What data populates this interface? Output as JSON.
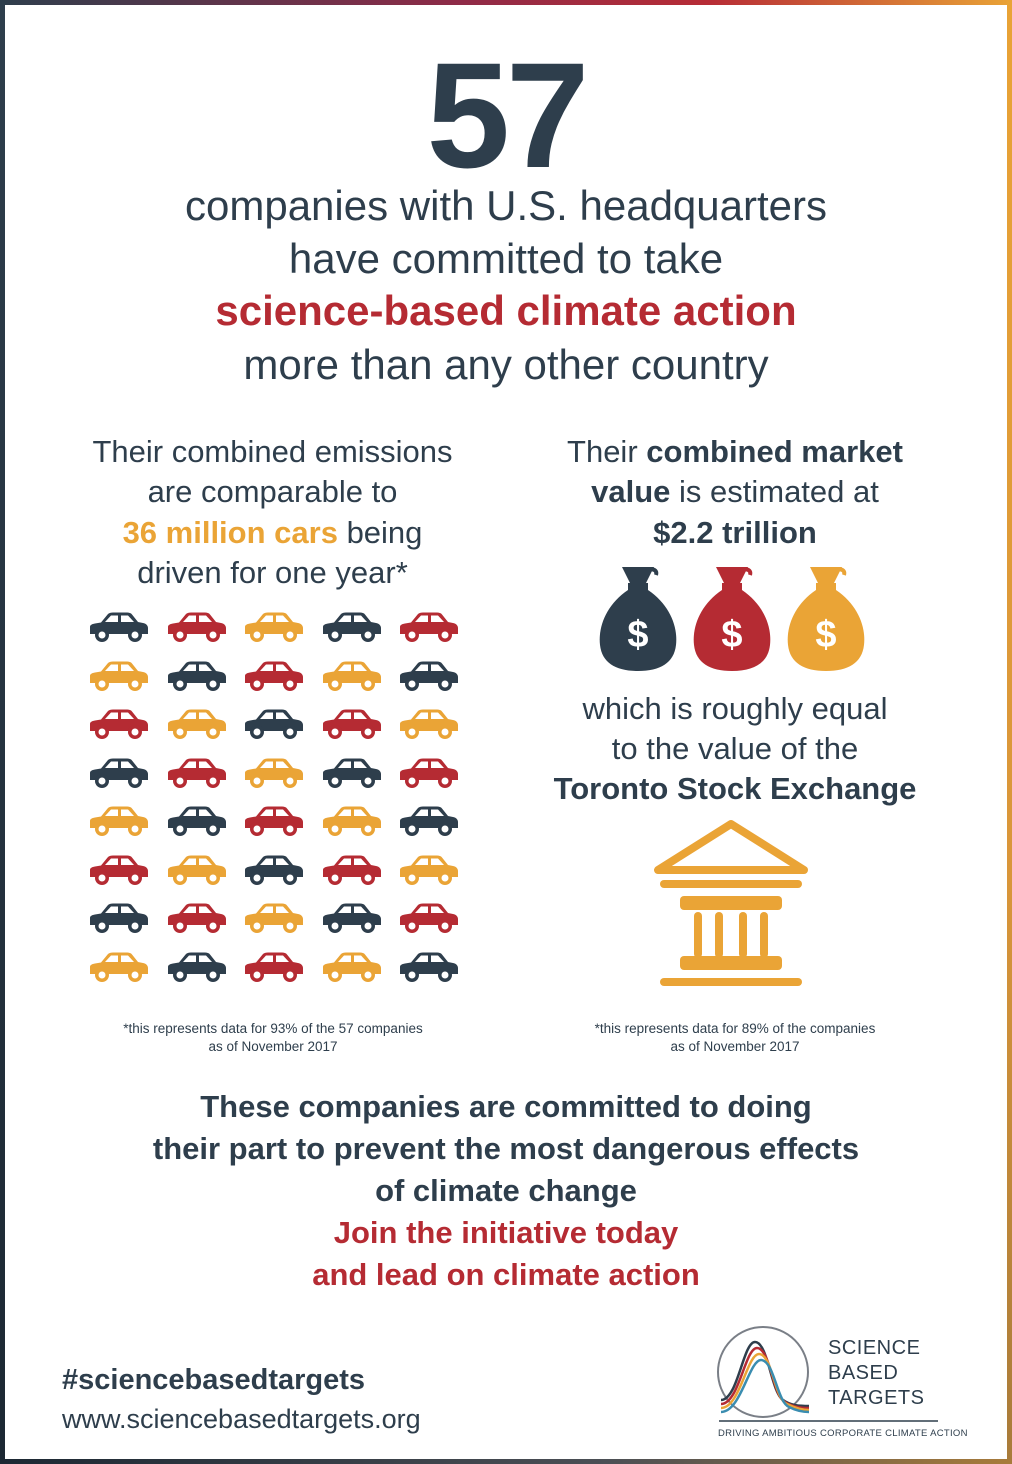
{
  "headline": {
    "number": "57",
    "line1": "companies with U.S. headquarters",
    "line2": "have committed to take",
    "line3": "science-based climate action",
    "line4": "more than any other country"
  },
  "emissions": {
    "line1": "Their combined emissions",
    "line2": "are comparable to",
    "highlight": "36 million cars",
    "line3_rest": " being",
    "line4": "driven for one year*",
    "footnote1": "*this represents data for 93% of the 57 companies",
    "footnote2": "as of November 2017"
  },
  "market": {
    "line1_prefix": "Their ",
    "line1_bold": "combined market",
    "line2_bold": "value",
    "line2_rest": " is estimated at",
    "amount": "$2.2 trillion",
    "equal1": "which is roughly equal",
    "equal2": "to the value of the",
    "exchange": "Toronto Stock Exchange",
    "footnote1": "*this represents data for 89% of the companies",
    "footnote2": "as of November 2017"
  },
  "closing": {
    "line1": "These companies are committed to doing",
    "line2": "their part to prevent the most dangerous effects",
    "line3": "of climate change",
    "cta1": "Join the initiative today",
    "cta2": "and lead on climate action"
  },
  "footer": {
    "hashtag": "#sciencebasedtargets",
    "url": "www.sciencebasedtargets.org"
  },
  "logo": {
    "line1": "SCIENCE",
    "line2": "BASED",
    "line3": "TARGETS",
    "tagline": "DRIVING AMBITIOUS CORPORATE CLIMATE ACTION"
  },
  "icons": {
    "car": "car-icon",
    "money_bag": "money-bag-icon",
    "building": "stock-exchange-building-icon",
    "logo": "science-based-targets-logo"
  },
  "colors": {
    "navy": "#2e3e4c",
    "red": "#b52b33",
    "orange": "#eaa436"
  },
  "car_grid": [
    [
      "navy",
      "red",
      "orange",
      "navy",
      "red"
    ],
    [
      "orange",
      "navy",
      "red",
      "orange",
      "navy"
    ],
    [
      "red",
      "orange",
      "navy",
      "red",
      "orange"
    ],
    [
      "navy",
      "red",
      "orange",
      "navy",
      "red"
    ],
    [
      "orange",
      "navy",
      "red",
      "orange",
      "navy"
    ],
    [
      "red",
      "orange",
      "navy",
      "red",
      "orange"
    ],
    [
      "navy",
      "red",
      "orange",
      "navy",
      "red"
    ],
    [
      "orange",
      "navy",
      "red",
      "orange",
      "navy"
    ]
  ],
  "money_bags": [
    "navy",
    "red",
    "orange"
  ]
}
